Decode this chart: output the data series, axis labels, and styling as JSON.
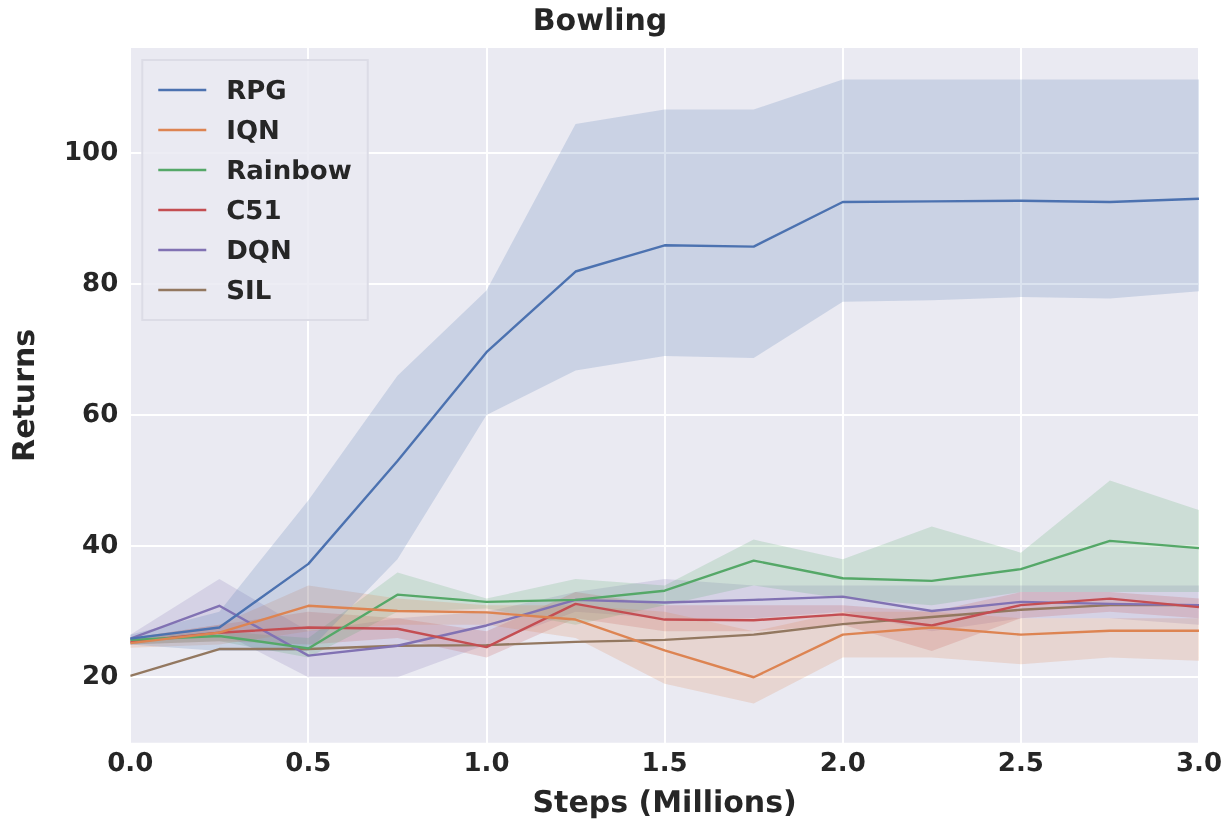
{
  "chart_data": {
    "type": "line",
    "title": "Bowling",
    "xlabel": "Steps (Millions)",
    "ylabel": "Returns",
    "x": [
      0,
      0.25,
      0.5,
      0.75,
      1.0,
      1.25,
      1.5,
      1.75,
      2.0,
      2.25,
      2.5,
      2.75,
      3.0
    ],
    "series": [
      {
        "name": "RPG",
        "color": "#4c72b0",
        "values": [
          25.9,
          27.6,
          37.3,
          53,
          69.6,
          81.9,
          85.9,
          85.7,
          92.5,
          92.6,
          92.7,
          92.5,
          93.0
        ],
        "lower": [
          25,
          24,
          24,
          38,
          60,
          66.8,
          69,
          68.7,
          77.3,
          77.5,
          78,
          77.8,
          78.9
        ],
        "upper": [
          26.5,
          30,
          47,
          66,
          79,
          104.4,
          106.6,
          106.6,
          111.2,
          111.2,
          111.2,
          111.2,
          111.2
        ]
      },
      {
        "name": "IQN",
        "color": "#dd8452",
        "values": [
          25.2,
          26.8,
          30.9,
          30.1,
          29.9,
          28.8,
          24.1,
          20,
          26.5,
          27.6,
          26.5,
          27.1,
          27.1
        ],
        "lower": [
          24.5,
          25,
          27,
          28,
          28,
          26,
          19,
          16,
          23,
          23,
          22,
          23,
          22.5
        ],
        "upper": [
          26,
          28,
          34,
          32,
          31,
          31,
          30,
          27,
          30,
          30,
          29,
          29,
          29
        ]
      },
      {
        "name": "Rainbow",
        "color": "#55a868",
        "values": [
          25.7,
          26.3,
          24.4,
          32.6,
          31.5,
          31.8,
          33.2,
          37.8,
          35.1,
          34.7,
          36.5,
          40.8,
          39.7
        ],
        "lower": [
          25,
          25.5,
          23,
          30,
          30.5,
          28,
          31,
          34,
          32,
          31,
          33,
          33,
          33
        ],
        "upper": [
          26,
          27,
          26,
          36,
          32,
          35,
          34,
          41,
          38,
          43,
          39,
          50,
          45.5
        ]
      },
      {
        "name": "C51",
        "color": "#c44e52",
        "values": [
          25.4,
          26.8,
          27.6,
          27.4,
          24.6,
          31.2,
          28.8,
          28.7,
          29.6,
          27.9,
          31,
          32,
          30.7
        ],
        "lower": [
          25,
          25.5,
          25,
          26,
          23,
          29,
          27,
          27,
          28,
          24,
          29,
          30,
          29
        ],
        "upper": [
          26,
          28,
          30,
          29,
          27,
          33,
          31,
          31,
          31,
          30,
          33,
          33,
          32
        ]
      },
      {
        "name": "DQN",
        "color": "#8172b3",
        "values": [
          25.9,
          30.9,
          23.3,
          24.8,
          27.9,
          31.8,
          31.4,
          31.8,
          32.3,
          30.1,
          31.5,
          31.2,
          31
        ],
        "lower": [
          25,
          27,
          20,
          20,
          25,
          30,
          29,
          29,
          30,
          27,
          29,
          29,
          28
        ],
        "upper": [
          26.5,
          35,
          27,
          29,
          30,
          33,
          35,
          34,
          34,
          34,
          34,
          34,
          34
        ]
      },
      {
        "name": "SIL",
        "color": "#937860",
        "values": [
          20.2,
          24.3,
          24.3,
          24.8,
          24.9,
          25.4,
          25.7,
          26.5,
          28.1,
          29.2,
          30.3,
          31,
          31
        ]
      }
    ],
    "xlim": [
      0,
      3
    ],
    "xticks": [
      {
        "value": 0,
        "label": "0.0"
      },
      {
        "value": 0.5,
        "label": "0.5"
      },
      {
        "value": 1,
        "label": "1.0"
      },
      {
        "value": 1.5,
        "label": "1.5"
      },
      {
        "value": 2,
        "label": "2.0"
      },
      {
        "value": 2.5,
        "label": "2.5"
      },
      {
        "value": 3,
        "label": "3.0"
      }
    ],
    "ylim": [
      10,
      116
    ],
    "yticks": [
      20,
      40,
      60,
      80,
      100
    ],
    "grid": true,
    "legend": "top left",
    "marker": "none",
    "line_style": "solid"
  }
}
